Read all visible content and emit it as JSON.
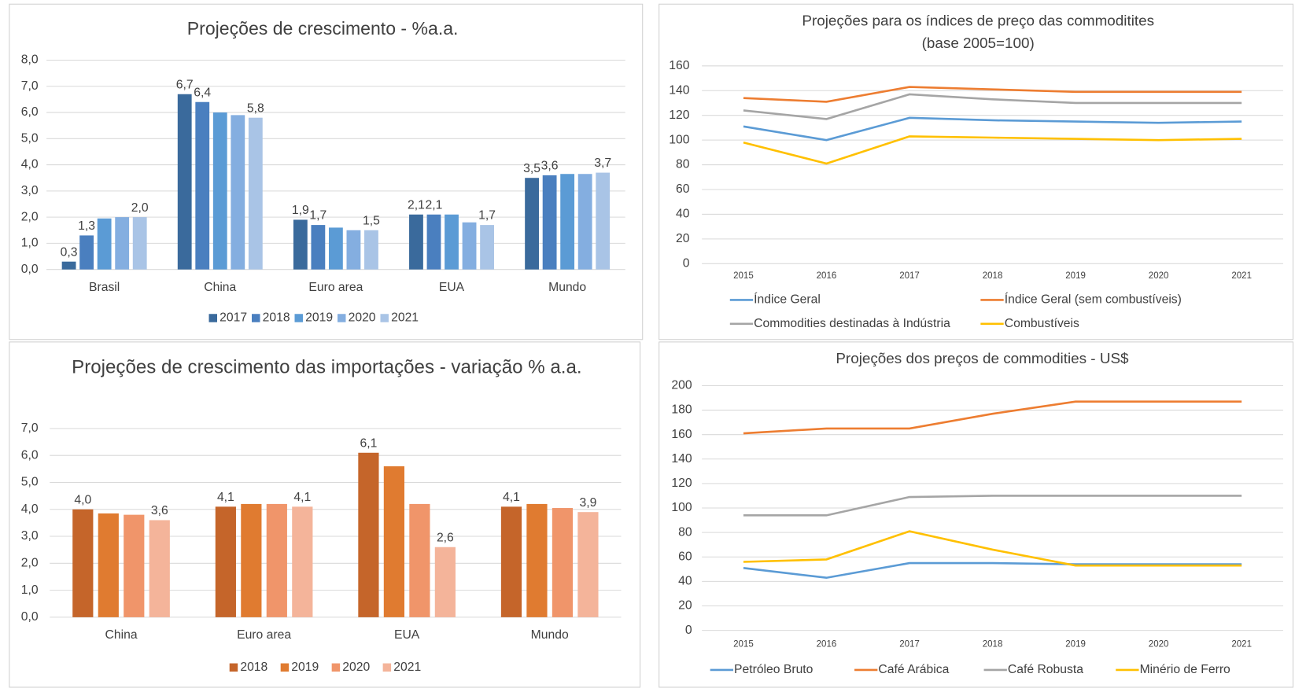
{
  "chart_data": [
    {
      "type": "bar",
      "title": "Projeções de crescimento - %a.a.",
      "categories": [
        "Brasil",
        "China",
        "Euro area",
        "EUA",
        "Mundo"
      ],
      "series": [
        {
          "name": "2017",
          "color": "#3a6a9c",
          "values": [
            0.3,
            6.7,
            1.9,
            2.1,
            3.5
          ],
          "value_labels": [
            "0,3",
            "6,7",
            "1,9",
            "2,1",
            "3,5"
          ]
        },
        {
          "name": "2018",
          "color": "#4a7fbf",
          "values": [
            1.3,
            6.4,
            1.7,
            2.1,
            3.6
          ],
          "value_labels": [
            "1,3",
            "6,4",
            "1,7",
            "2,1",
            "3,6"
          ]
        },
        {
          "name": "2019",
          "color": "#5b9bd5",
          "values": [
            1.95,
            6.0,
            1.6,
            2.1,
            3.65
          ],
          "value_labels": [
            null,
            null,
            null,
            null,
            null
          ]
        },
        {
          "name": "2020",
          "color": "#84aee0",
          "values": [
            2.0,
            5.9,
            1.5,
            1.8,
            3.65
          ],
          "value_labels": [
            null,
            null,
            null,
            null,
            null
          ]
        },
        {
          "name": "2021",
          "color": "#a9c4e6",
          "values": [
            2.0,
            5.8,
            1.5,
            1.7,
            3.7
          ],
          "value_labels": [
            "2,0",
            "5,8",
            "1,5",
            "1,7",
            "3,7"
          ]
        }
      ],
      "ylim": [
        0,
        8
      ],
      "yticks": [
        {
          "value": 0,
          "label": "0,0"
        },
        {
          "value": 1,
          "label": "1,0"
        },
        {
          "value": 2,
          "label": "2,0"
        },
        {
          "value": 3,
          "label": "3,0"
        },
        {
          "value": 4,
          "label": "4,0"
        },
        {
          "value": 5,
          "label": "5,0"
        },
        {
          "value": 6,
          "label": "6,0"
        },
        {
          "value": 7,
          "label": "7,0"
        },
        {
          "value": 8,
          "label": "8,0"
        }
      ],
      "grid": true,
      "legend": "bottom"
    },
    {
      "type": "line",
      "title": "Projeções para os índices de preço das commoditites (base 2005=100)",
      "categories": [
        "2015",
        "2016",
        "2017",
        "2018",
        "2019",
        "2020",
        "2021"
      ],
      "series": [
        {
          "name": "Índice Geral",
          "color": "#5b9bd5",
          "values": [
            111,
            100,
            118,
            116,
            115,
            114,
            115
          ]
        },
        {
          "name": "Índice Geral (sem combustíveis)",
          "color": "#ed7d31",
          "values": [
            134,
            131,
            143,
            141,
            139,
            139,
            139
          ]
        },
        {
          "name": "Commodities destinadas à Indústria",
          "color": "#a5a5a5",
          "values": [
            124,
            117,
            137,
            133,
            130,
            130,
            130
          ]
        },
        {
          "name": "Combustíveis",
          "color": "#ffc000",
          "values": [
            98,
            81,
            103,
            102,
            101,
            100,
            101
          ]
        }
      ],
      "ylim": [
        0,
        160
      ],
      "yticks": [
        0,
        20,
        40,
        60,
        80,
        100,
        120,
        140,
        160
      ],
      "grid": true,
      "legend": "bottom"
    },
    {
      "type": "bar",
      "title": "Projeções de crescimento das importações  - variação % a.a.",
      "categories": [
        "China",
        "Euro area",
        "EUA",
        "Mundo"
      ],
      "series": [
        {
          "name": "2018",
          "color": "#c5652a",
          "values": [
            4.0,
            4.1,
            6.1,
            4.1
          ],
          "value_labels": [
            "4,0",
            "4,1",
            "6,1",
            "4,1"
          ]
        },
        {
          "name": "2019",
          "color": "#e07b30",
          "values": [
            3.85,
            4.2,
            5.6,
            4.2
          ],
          "value_labels": [
            null,
            null,
            null,
            null
          ]
        },
        {
          "name": "2020",
          "color": "#f0956a",
          "values": [
            3.8,
            4.2,
            4.2,
            4.05
          ],
          "value_labels": [
            null,
            null,
            null,
            null
          ]
        },
        {
          "name": "2021",
          "color": "#f4b49a",
          "values": [
            3.6,
            4.1,
            2.6,
            3.9
          ],
          "value_labels": [
            "3,6",
            "4,1",
            "2,6",
            "3,9"
          ]
        }
      ],
      "ylim": [
        0,
        7
      ],
      "yticks": [
        {
          "value": 0,
          "label": "0,0"
        },
        {
          "value": 1,
          "label": "1,0"
        },
        {
          "value": 2,
          "label": "2,0"
        },
        {
          "value": 3,
          "label": "3,0"
        },
        {
          "value": 4,
          "label": "4,0"
        },
        {
          "value": 5,
          "label": "5,0"
        },
        {
          "value": 6,
          "label": "6,0"
        },
        {
          "value": 7,
          "label": "7,0"
        }
      ],
      "grid": true,
      "legend": "bottom"
    },
    {
      "type": "line",
      "title": "Projeções dos preços de commodities - US$",
      "categories": [
        "2015",
        "2016",
        "2017",
        "2018",
        "2019",
        "2020",
        "2021"
      ],
      "series": [
        {
          "name": "Petróleo Bruto",
          "color": "#5b9bd5",
          "values": [
            51,
            43,
            55,
            55,
            54,
            54,
            54
          ]
        },
        {
          "name": "Café Arábica",
          "color": "#ed7d31",
          "values": [
            161,
            165,
            165,
            177,
            187,
            187,
            187
          ]
        },
        {
          "name": "Café Robusta",
          "color": "#a5a5a5",
          "values": [
            94,
            94,
            109,
            110,
            110,
            110,
            110
          ]
        },
        {
          "name": "Minério de Ferro",
          "color": "#ffc000",
          "values": [
            56,
            58,
            81,
            66,
            53,
            53,
            53
          ]
        }
      ],
      "ylim": [
        0,
        200
      ],
      "yticks": [
        0,
        20,
        40,
        60,
        80,
        100,
        120,
        140,
        160,
        180,
        200
      ],
      "grid": true,
      "legend": "bottom"
    }
  ]
}
